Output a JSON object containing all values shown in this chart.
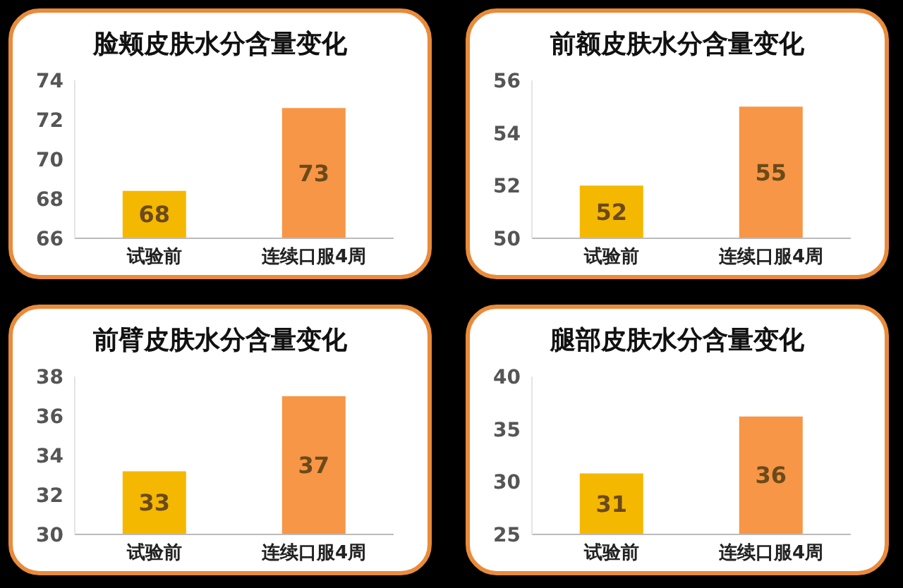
{
  "chart_data": [
    {
      "type": "bar",
      "title": "脸颊皮肤水分含量变化",
      "categories": [
        "试验前",
        "连续口服4周"
      ],
      "values": [
        68.4,
        72.6
      ],
      "colors": [
        "#f5b800",
        "#f79646"
      ],
      "value_labels": [
        "68",
        "73"
      ],
      "ylim": [
        66,
        74
      ],
      "yticks": [
        66,
        68,
        70,
        72,
        74
      ]
    },
    {
      "type": "bar",
      "title": "前额皮肤水分含量变化",
      "categories": [
        "试验前",
        "连续口服4周"
      ],
      "values": [
        52.0,
        55.0
      ],
      "colors": [
        "#f5b800",
        "#f79646"
      ],
      "value_labels": [
        "52",
        "55"
      ],
      "ylim": [
        50,
        56
      ],
      "yticks": [
        50,
        52,
        54,
        56
      ]
    },
    {
      "type": "bar",
      "title": "前臂皮肤水分含量变化",
      "categories": [
        "试验前",
        "连续口服4周"
      ],
      "values": [
        33.2,
        37.0
      ],
      "colors": [
        "#f5b800",
        "#f79646"
      ],
      "value_labels": [
        "33",
        "37"
      ],
      "ylim": [
        30,
        38
      ],
      "yticks": [
        30,
        32,
        34,
        36,
        38
      ]
    },
    {
      "type": "bar",
      "title": "腿部皮肤水分含量变化",
      "categories": [
        "试验前",
        "连续口服4周"
      ],
      "values": [
        30.8,
        36.2
      ],
      "colors": [
        "#f5b800",
        "#f79646"
      ],
      "value_labels": [
        "31",
        "36"
      ],
      "ylim": [
        25,
        40
      ],
      "yticks": [
        25,
        30,
        35,
        40
      ]
    }
  ]
}
